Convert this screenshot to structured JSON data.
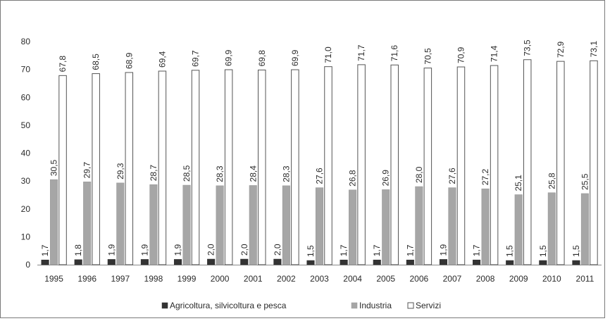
{
  "chart_data": {
    "type": "bar",
    "title": "",
    "xlabel": "",
    "ylabel": "",
    "ylim": [
      0,
      80
    ],
    "yticks": [
      0,
      10,
      20,
      30,
      40,
      50,
      60,
      70,
      80
    ],
    "grid": false,
    "legend_position": "bottom",
    "categories": [
      "1995",
      "1996",
      "1997",
      "1998",
      "1999",
      "2000",
      "2001",
      "2002",
      "2003",
      "2004",
      "2005",
      "2006",
      "2007",
      "2008",
      "2009",
      "2010",
      "2011"
    ],
    "series": [
      {
        "name": "Agricoltura, silvicoltura e pesca",
        "color": "#333333",
        "values": [
          1.7,
          1.8,
          1.9,
          1.9,
          1.9,
          2.0,
          2.0,
          2.0,
          1.5,
          1.7,
          1.7,
          1.7,
          1.9,
          1.7,
          1.5,
          1.5,
          1.5
        ],
        "labels": [
          "1,7",
          "1,8",
          "1,9",
          "1,9",
          "1,9",
          "2,0",
          "2,0",
          "2,0",
          "1,5",
          "1,7",
          "1,7",
          "1,7",
          "1,9",
          "1,7",
          "1,5",
          "1,5",
          "1,5"
        ]
      },
      {
        "name": "Industria",
        "color": "#a6a6a6",
        "values": [
          30.5,
          29.7,
          29.3,
          28.7,
          28.5,
          28.3,
          28.4,
          28.3,
          27.6,
          26.8,
          26.9,
          28.0,
          27.6,
          27.2,
          25.1,
          25.8,
          25.5
        ],
        "labels": [
          "30,5",
          "29,7",
          "29,3",
          "28,7",
          "28,5",
          "28,3",
          "28,4",
          "28,3",
          "27,6",
          "26,8",
          "26,9",
          "28,0",
          "27,6",
          "27,2",
          "25,1",
          "25,8",
          "25,5"
        ]
      },
      {
        "name": "Servizi",
        "color": "#ffffff",
        "values": [
          67.8,
          68.5,
          68.9,
          69.4,
          69.7,
          69.9,
          69.8,
          69.9,
          71.0,
          71.7,
          71.6,
          70.5,
          70.9,
          71.4,
          73.5,
          72.9,
          73.1
        ],
        "labels": [
          "67,8",
          "68,5",
          "68,9",
          "69,4",
          "69,7",
          "69,9",
          "69,8",
          "69,9",
          "71,0",
          "71,7",
          "71,6",
          "70,5",
          "70,9",
          "71,4",
          "73,5",
          "72,9",
          "73,1"
        ]
      }
    ]
  }
}
